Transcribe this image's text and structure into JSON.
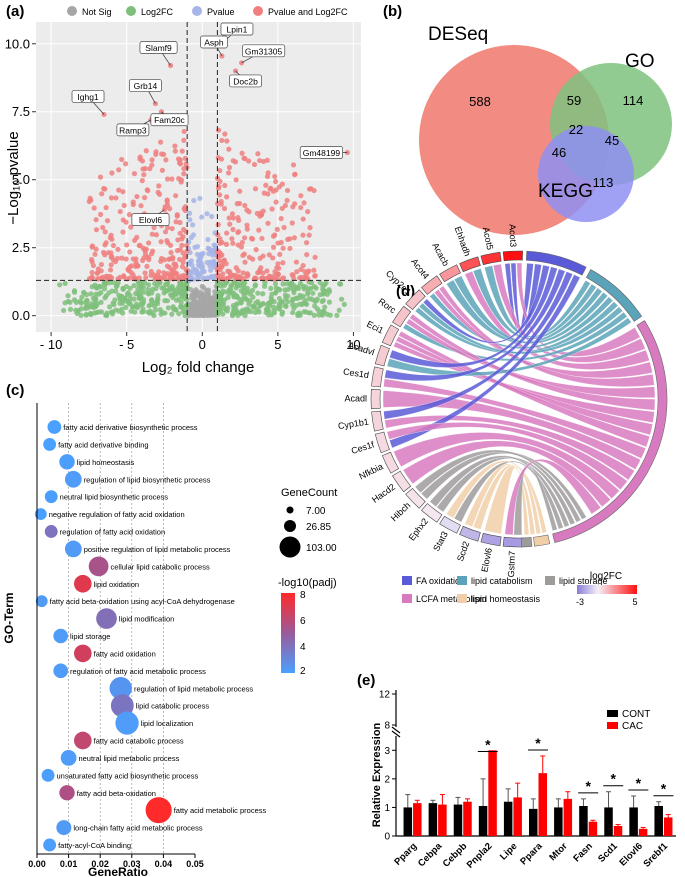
{
  "panel_labels": {
    "a": "(a)",
    "b": "(b)",
    "c": "(c)",
    "d": "(d)",
    "e": "(e)"
  },
  "chart_data": [
    {
      "id": "volcano",
      "type": "scatter",
      "title": "",
      "xlabel": "Log₂ fold change",
      "ylabel": "−Log₁₀ pvalue",
      "xlim": [
        -11,
        10.5
      ],
      "ylim": [
        -0.6,
        10.8
      ],
      "xticks": [
        -10,
        -5,
        0,
        5,
        10
      ],
      "yticks": [
        0.0,
        2.5,
        5.0,
        7.5,
        10.0
      ],
      "thresholds": {
        "log2fc": [
          -1,
          1
        ],
        "pvalue": 1.3
      },
      "legend": [
        {
          "label": "Not Sig",
          "color": "#a6a6a6"
        },
        {
          "label": "Log2FC",
          "color": "#7fbf7b"
        },
        {
          "label": "Pvalue",
          "color": "#a6b4e8"
        },
        {
          "label": "Pvalue and Log2FC",
          "color": "#f08080"
        }
      ],
      "labeled_genes": [
        {
          "gene": "Lpin1",
          "x": 1.5,
          "y": 10.1
        },
        {
          "gene": "Asph",
          "x": 1.3,
          "y": 9.55
        },
        {
          "gene": "Slamf9",
          "x": -2.1,
          "y": 9.2
        },
        {
          "gene": "Gm31305",
          "x": 2.6,
          "y": 9.3
        },
        {
          "gene": "Doc2b",
          "x": 2.2,
          "y": 9.0
        },
        {
          "gene": "Grb14",
          "x": -3.1,
          "y": 7.8
        },
        {
          "gene": "Ighg1",
          "x": -6.5,
          "y": 7.4
        },
        {
          "gene": "Ramp3",
          "x": -3.4,
          "y": 7.2
        },
        {
          "gene": "Fam20c",
          "x": -2.7,
          "y": 7.5
        },
        {
          "gene": "Gm48199",
          "x": 9.6,
          "y": 6.0
        },
        {
          "gene": "Elovl6",
          "x": -2.5,
          "y": 3.9
        }
      ]
    },
    {
      "id": "venn",
      "type": "venn",
      "sets": [
        {
          "name": "DESeq",
          "color": "#f28b82"
        },
        {
          "name": "GO",
          "color": "#7fc27f"
        },
        {
          "name": "KEGG",
          "color": "#8f8ff2"
        }
      ],
      "regions": {
        "DESeq_only": "588",
        "GO_only": "114",
        "KEGG_only": "113",
        "DESeq_GO": "59",
        "DESeq_KEGG": "46",
        "GO_KEGG": "45",
        "all": "22"
      }
    },
    {
      "id": "go_bubble",
      "type": "scatter",
      "xlabel": "GeneRatio",
      "ylabel": "GO-Term",
      "xlim": [
        0,
        0.05
      ],
      "xticks": [
        "0.00",
        "0.01",
        "0.02",
        "0.03",
        "0.04",
        "0.05"
      ],
      "size_legend_title": "GeneCount",
      "size_legend": [
        "7.00",
        "26.85",
        "103.00"
      ],
      "color_legend_title": "-log10(padj)",
      "color_ticks": [
        "8",
        "6",
        "4",
        "2"
      ],
      "terms": [
        {
          "term": "fatty acid derivative biosynthetic process",
          "ratio": 0.0055,
          "count": 9,
          "padj": 1.5
        },
        {
          "term": "fatty acid derivative binding",
          "ratio": 0.004,
          "count": 7,
          "padj": 1.5
        },
        {
          "term": "lipid homeostasis",
          "ratio": 0.0095,
          "count": 13,
          "padj": 1.6
        },
        {
          "term": "regulation of lipid biosynthetic process",
          "ratio": 0.0115,
          "count": 17,
          "padj": 1.7
        },
        {
          "term": "neutral lipid biosynthetic process",
          "ratio": 0.0045,
          "count": 7,
          "padj": 1.6
        },
        {
          "term": "negative regulation of fatty acid oxidation",
          "ratio": 0.0012,
          "count": 5,
          "padj": 1.5
        },
        {
          "term": "regulation of fatty acid oxidation",
          "ratio": 0.0045,
          "count": 7,
          "padj": 3.6
        },
        {
          "term": "positive regulation of lipid metabolic process",
          "ratio": 0.0115,
          "count": 17,
          "padj": 1.8
        },
        {
          "term": "cellular lipid catabolic process",
          "ratio": 0.0195,
          "count": 28,
          "padj": 5.2
        },
        {
          "term": "lipid oxidation",
          "ratio": 0.0145,
          "count": 20,
          "padj": 7.0
        },
        {
          "term": "fatty acid beta-oxidation using acyl-CoA dehydrogenase",
          "ratio": 0.0015,
          "count": 5,
          "padj": 1.8
        },
        {
          "term": "lipid modification",
          "ratio": 0.022,
          "count": 32,
          "padj": 3.8
        },
        {
          "term": "lipid storage",
          "ratio": 0.0075,
          "count": 11,
          "padj": 1.7
        },
        {
          "term": "fatty acid oxidation",
          "ratio": 0.0145,
          "count": 20,
          "padj": 6.5
        },
        {
          "term": "regulation of fatty acid metabolic process",
          "ratio": 0.0075,
          "count": 11,
          "padj": 1.7
        },
        {
          "term": "regulation of lipid metabolic process",
          "ratio": 0.0265,
          "count": 40,
          "padj": 2.0
        },
        {
          "term": "lipid catabolic process",
          "ratio": 0.027,
          "count": 42,
          "padj": 3.5
        },
        {
          "term": "lipid localization",
          "ratio": 0.0285,
          "count": 44,
          "padj": 1.7
        },
        {
          "term": "fatty acid catabolic process",
          "ratio": 0.0145,
          "count": 20,
          "padj": 6.0
        },
        {
          "term": "neutral lipid metabolic process",
          "ratio": 0.01,
          "count": 14,
          "padj": 1.7
        },
        {
          "term": "unsaturated fatty acid biosynthetic process",
          "ratio": 0.0035,
          "count": 7,
          "padj": 1.6
        },
        {
          "term": "fatty acid beta-oxidation",
          "ratio": 0.0095,
          "count": 13,
          "padj": 5.4
        },
        {
          "term": "fatty acid metabolic process",
          "ratio": 0.0385,
          "count": 60,
          "padj": 8.0
        },
        {
          "term": "long-chain fatty acid metabolic process",
          "ratio": 0.0085,
          "count": 12,
          "padj": 1.8
        },
        {
          "term": "fatty-acyl-CoA binding",
          "ratio": 0.004,
          "count": 7,
          "padj": 1.6
        }
      ]
    },
    {
      "id": "chord",
      "type": "chord",
      "genes": [
        "Acot3",
        "Acot5",
        "Ehhadh",
        "Acacb",
        "Acot4",
        "Cyp2e1",
        "Rorc",
        "Eci1",
        "Acadvl",
        "Ces1d",
        "Acadl",
        "Cyp1b1",
        "Ces1f",
        "Nfkbia",
        "Hacd2",
        "Hibch",
        "Ephx2",
        "Stat3",
        "Scd2",
        "Elovl6",
        "Gstm7"
      ],
      "log2fc": [
        5,
        4.2,
        3.5,
        2,
        1.5,
        1,
        1,
        0.8,
        0.8,
        0.7,
        0.6,
        0.6,
        0.5,
        0.5,
        0.4,
        0.3,
        0.2,
        -0.5,
        -1.5,
        -2,
        -2.2
      ],
      "terms": [
        {
          "name": "FA oxidation",
          "color": "#5a5ad8"
        },
        {
          "name": "lipid catabolism",
          "color": "#5aa3b8"
        },
        {
          "name": "lipid storage",
          "color": "#9e9b9b"
        },
        {
          "name": "LCFA metabolism",
          "color": "#d87ac0"
        },
        {
          "name": "lipid homeostasis",
          "color": "#f0cfa8"
        }
      ],
      "scale_title": "log2FC",
      "scale_min": "-3",
      "scale_max": "5"
    },
    {
      "id": "rt_qpcr",
      "type": "bar",
      "ylabel": "Relative Expression",
      "categories": [
        "Pparg",
        "Cebpa",
        "Cebpb",
        "Pnpla2",
        "Lipe",
        "Ppara",
        "Mtor",
        "Fasn",
        "Scd1",
        "Elovl6",
        "Srebf1"
      ],
      "series": [
        {
          "name": "CONT",
          "color": "#000000",
          "values": [
            1.0,
            1.15,
            1.1,
            1.05,
            1.2,
            0.95,
            1.0,
            1.05,
            1.0,
            1.0,
            1.05
          ],
          "errors": [
            0.45,
            0.1,
            0.25,
            0.95,
            0.45,
            0.35,
            0.3,
            0.25,
            0.55,
            0.4,
            0.15
          ]
        },
        {
          "name": "CAC",
          "color": "#ff0000",
          "values": [
            1.15,
            1.1,
            1.2,
            3.0,
            1.35,
            2.2,
            1.3,
            0.5,
            0.35,
            0.25,
            0.65
          ],
          "errors": [
            0.1,
            0.35,
            0.1,
            0.8,
            0.5,
            0.6,
            0.25,
            0.05,
            0.05,
            0.05,
            0.1
          ]
        }
      ],
      "significant": [
        "Pnpla2",
        "Ppara",
        "Fasn",
        "Scd1",
        "Elovl6",
        "Srebf1"
      ],
      "sig_marker": "*",
      "yticks_lower": [
        "0",
        "1",
        "2",
        "3"
      ],
      "yticks_upper": [
        "8",
        "12"
      ]
    }
  ]
}
